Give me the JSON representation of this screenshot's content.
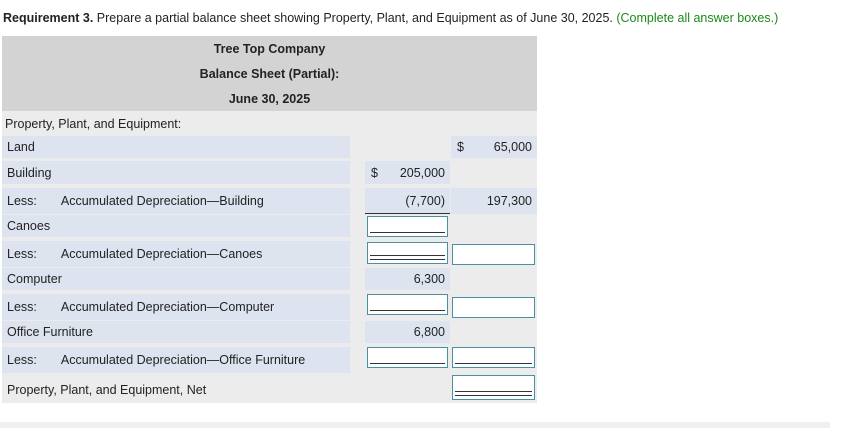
{
  "instruction": {
    "label": "Requirement 3.",
    "text": "Prepare a partial balance sheet showing Property, Plant, and Equipment as of June 30, 2025.",
    "note": "(Complete all answer boxes.)"
  },
  "header": {
    "company": "Tree Top Company",
    "title": "Balance Sheet (Partial):",
    "date": "June 30, 2025"
  },
  "section": "Property, Plant, and Equipment:",
  "rows": [
    {
      "label": "Land",
      "c2_sign": "$",
      "c2": "65,000"
    },
    {
      "label": "Building",
      "c1_sign": "$",
      "c1": "205,000"
    },
    {
      "less": "Less:",
      "label": "Accumulated Depreciation—Building",
      "c1": "(7,700)",
      "c2": "197,300"
    },
    {
      "label": "Canoes"
    },
    {
      "less": "Less:",
      "label": "Accumulated Depreciation—Canoes"
    },
    {
      "label": "Computer",
      "c1": "6,300"
    },
    {
      "less": "Less:",
      "label": "Accumulated Depreciation—Computer"
    },
    {
      "label": "Office Furniture",
      "c1": "6,800"
    },
    {
      "less": "Less:",
      "label": "Accumulated Depreciation—Office Furniture"
    },
    {
      "label": "Property, Plant, and Equipment, Net"
    }
  ]
}
